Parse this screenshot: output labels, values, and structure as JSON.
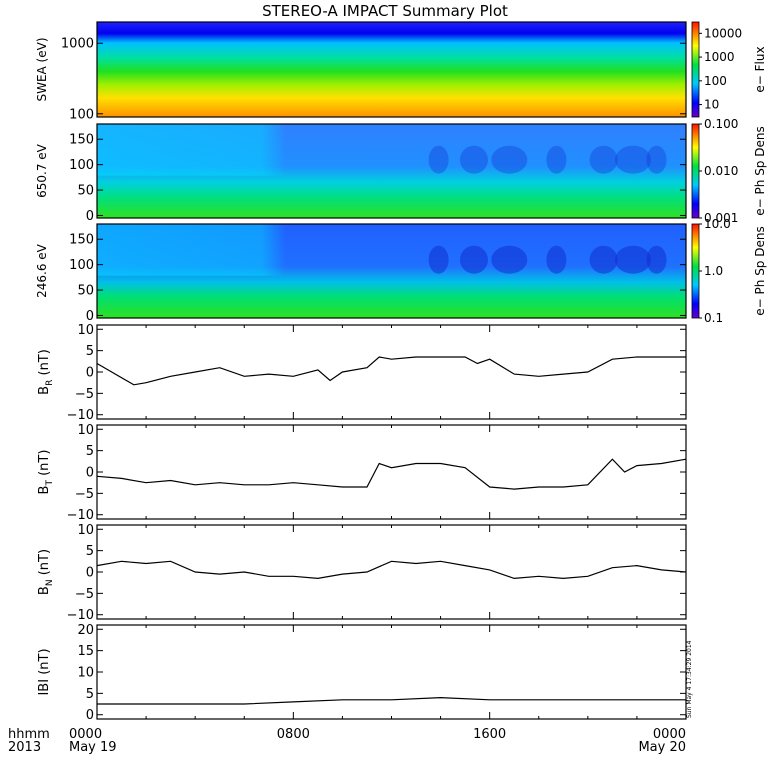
{
  "title": "STEREO-A IMPACT Summary Plot",
  "footer": {
    "hhmm": "hhmm",
    "year": "2013",
    "stamp": "Sun May  4 17:34:29 2014"
  },
  "chart_data": [
    {
      "type": "heatmap",
      "name": "swea",
      "ylabel": "SWEA (eV)",
      "yscale": "log",
      "ylim": [
        90,
        2000
      ],
      "yticks": [
        100,
        1000
      ],
      "ytick_labels": [
        "100",
        "1000"
      ],
      "colorbar": {
        "label": "e− Flux",
        "scale": "log",
        "range": [
          3,
          30000
        ],
        "ticks": [
          10,
          100,
          1000,
          10000
        ],
        "tick_labels": [
          "10",
          "100",
          "1000",
          "10000"
        ]
      }
    },
    {
      "type": "heatmap",
      "name": "pad_650",
      "ylabel": "650.7 eV",
      "ylim": [
        -5,
        180
      ],
      "yticks": [
        0,
        50,
        100,
        150
      ],
      "ytick_labels": [
        "0",
        "50",
        "100",
        "150"
      ],
      "colorbar": {
        "label": "e− Ph Sp Dens",
        "scale": "log",
        "range": [
          0.001,
          0.1
        ],
        "ticks": [
          0.001,
          0.01,
          0.1
        ],
        "tick_labels": [
          "0.001",
          "0.010",
          "0.100"
        ]
      }
    },
    {
      "type": "heatmap",
      "name": "pad_246",
      "ylabel": "246.6 eV",
      "ylim": [
        -5,
        180
      ],
      "yticks": [
        0,
        50,
        100,
        150
      ],
      "ytick_labels": [
        "0",
        "50",
        "100",
        "150"
      ],
      "colorbar": {
        "label": "e− Ph Sp Dens",
        "scale": "log",
        "range": [
          0.1,
          10
        ],
        "ticks": [
          0.1,
          1,
          10
        ],
        "tick_labels": [
          "0.1",
          "1.0",
          "10.0"
        ]
      }
    },
    {
      "type": "line",
      "name": "br",
      "ylabel": "B",
      "ylabel_sub": "R",
      "ylabel_unit": "(nT)",
      "ylim": [
        -11,
        11
      ],
      "yticks": [
        -10,
        -5,
        0,
        5,
        10
      ],
      "ytick_labels": [
        "−10",
        "−5",
        "0",
        "5",
        "10"
      ],
      "x": [
        0,
        1.5,
        2,
        3,
        4,
        5,
        6,
        7,
        8,
        9,
        9.5,
        10,
        11,
        11.5,
        12,
        13,
        14,
        15,
        15.5,
        16,
        17,
        18,
        19,
        20,
        21,
        22,
        23,
        24
      ],
      "y": [
        2,
        -3,
        -2.5,
        -1,
        0,
        1,
        -1,
        -0.5,
        -1,
        0.5,
        -2,
        0,
        1,
        3.5,
        3,
        3.5,
        3.5,
        3.5,
        2,
        3,
        -0.5,
        -1,
        -0.5,
        0,
        3,
        3.5,
        3.5,
        3.5
      ]
    },
    {
      "type": "line",
      "name": "bt",
      "ylabel": "B",
      "ylabel_sub": "T",
      "ylabel_unit": "(nT)",
      "ylim": [
        -11,
        11
      ],
      "yticks": [
        -10,
        -5,
        0,
        5,
        10
      ],
      "ytick_labels": [
        "−10",
        "−5",
        "0",
        "5",
        "10"
      ],
      "x": [
        0,
        1,
        2,
        3,
        4,
        5,
        6,
        7,
        8,
        9,
        10,
        11,
        11.5,
        12,
        13,
        14,
        15,
        16,
        17,
        18,
        19,
        20,
        21,
        21.5,
        22,
        23,
        24
      ],
      "y": [
        -1,
        -1.5,
        -2.5,
        -2,
        -3,
        -2.5,
        -3,
        -3,
        -2.5,
        -3,
        -3.5,
        -3.5,
        2,
        1,
        2,
        2,
        1,
        -3.5,
        -4,
        -3.5,
        -3.5,
        -3,
        3,
        0,
        1.5,
        2,
        3
      ]
    },
    {
      "type": "line",
      "name": "bn",
      "ylabel": "B",
      "ylabel_sub": "N",
      "ylabel_unit": "(nT)",
      "ylim": [
        -11,
        11
      ],
      "yticks": [
        -10,
        -5,
        0,
        5,
        10
      ],
      "ytick_labels": [
        "−10",
        "−5",
        "0",
        "5",
        "10"
      ],
      "x": [
        0,
        1,
        2,
        3,
        4,
        5,
        6,
        7,
        8,
        9,
        10,
        11,
        12,
        13,
        14,
        15,
        16,
        17,
        18,
        19,
        20,
        21,
        22,
        23,
        24
      ],
      "y": [
        1.5,
        2.5,
        2,
        2.5,
        0,
        -0.5,
        0,
        -1,
        -1,
        -1.5,
        -0.5,
        0,
        2.5,
        2,
        2.5,
        1.5,
        0.5,
        -1.5,
        -1,
        -1.5,
        -1,
        1,
        1.5,
        0.5,
        0
      ]
    },
    {
      "type": "line",
      "name": "bmag",
      "ylabel": "IBI",
      "ylabel_sub": "",
      "ylabel_unit": "(nT)",
      "ylim": [
        -1,
        21
      ],
      "yticks": [
        0,
        5,
        10,
        15,
        20
      ],
      "ytick_labels": [
        "0",
        "5",
        "10",
        "15",
        "20"
      ],
      "x": [
        0,
        2,
        4,
        6,
        8,
        10,
        12,
        14,
        16,
        18,
        20,
        22,
        24
      ],
      "y": [
        2.5,
        2.5,
        2.5,
        2.5,
        3,
        3.5,
        3.5,
        4,
        3.5,
        3.5,
        3.5,
        3.5,
        3.5
      ]
    }
  ],
  "x_axis": {
    "range": [
      0,
      24
    ],
    "ticks": [
      0,
      8,
      16,
      24
    ],
    "tick_labels": [
      "0000",
      "0800",
      "1600",
      "0000"
    ],
    "date_labels": [
      "May 19",
      "",
      "",
      "May 20"
    ]
  }
}
